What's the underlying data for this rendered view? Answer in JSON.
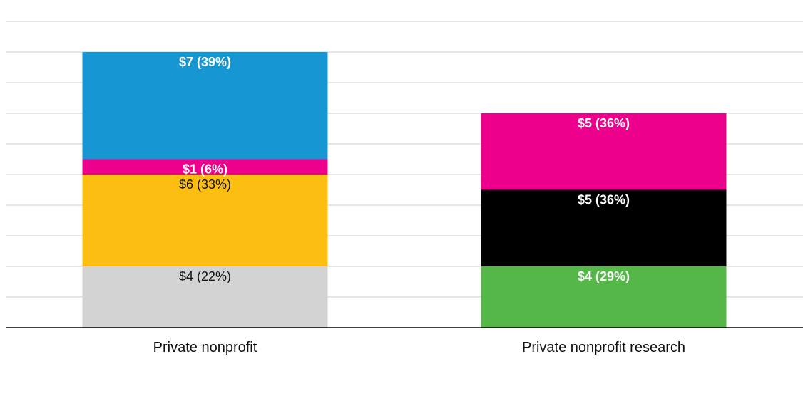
{
  "chart_data": {
    "type": "bar",
    "stacked": true,
    "categories": [
      "Private nonprofit",
      "Private nonprofit research"
    ],
    "ylim": [
      0,
      20
    ],
    "grid": true,
    "title": "",
    "xlabel": "",
    "ylabel": "",
    "stacks": [
      {
        "category": "Private nonprofit",
        "segments": [
          {
            "value": 4,
            "label": "$4 (22%)",
            "color": "#d3d3d3",
            "text_color": "#111111",
            "bold": false
          },
          {
            "value": 6,
            "label": "$6 (33%)",
            "color": "#fcbf11",
            "text_color": "#111111",
            "bold": false
          },
          {
            "value": 1,
            "label": "$1 (6%)",
            "color": "#ec008c",
            "text_color": "#ffffff",
            "bold": true
          },
          {
            "value": 7,
            "label": "$7 (39%)",
            "color": "#1696d2",
            "text_color": "#ffffff",
            "bold": true
          }
        ]
      },
      {
        "category": "Private nonprofit research",
        "segments": [
          {
            "value": 4,
            "label": "$4 (29%)",
            "color": "#55b748",
            "text_color": "#ffffff",
            "bold": true
          },
          {
            "value": 5,
            "label": "$5 (36%)",
            "color": "#000000",
            "text_color": "#ffffff",
            "bold": true
          },
          {
            "value": 5,
            "label": "$5 (36%)",
            "color": "#ec008c",
            "text_color": "#ffffff",
            "bold": true
          }
        ]
      }
    ]
  },
  "colors": {
    "grid": "#dedede",
    "axis": "#000000"
  }
}
